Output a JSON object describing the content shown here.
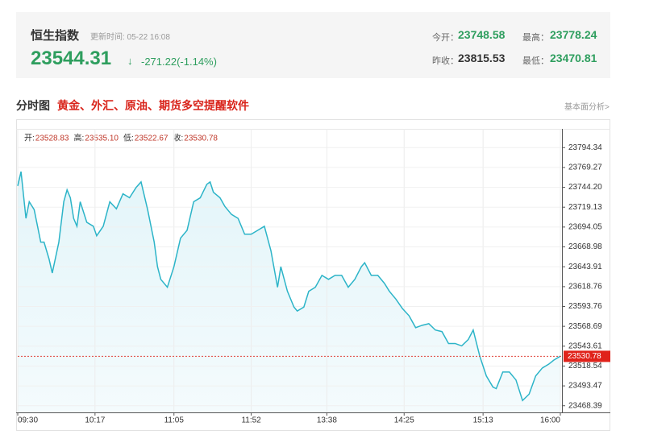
{
  "header": {
    "title": "恒生指数",
    "update_time": "更新时间: 05-22 16:08",
    "price": 23544.31,
    "arrow": "↓",
    "change": "-271.22(-1.14%)",
    "stats": [
      {
        "label": "今开：",
        "value": "23748.58"
      },
      {
        "label": "最高：",
        "value": "23778.24"
      },
      {
        "label": "昨收：",
        "value": "23815.53"
      },
      {
        "label": "最低：",
        "value": "23470.81"
      }
    ]
  },
  "section": {
    "title": "分时图",
    "promo": "黄金、外汇、原油、期货多空提醒软件",
    "link": "基本面分析>"
  },
  "chart_data": {
    "type": "line",
    "info": [
      {
        "label": "开:",
        "value": "23528.83"
      },
      {
        "label": "高:",
        "value": "23535.10"
      },
      {
        "label": "低:",
        "value": "23522.67"
      },
      {
        "label": "收:",
        "value": "23530.78"
      }
    ],
    "x": [
      0,
      2,
      5,
      7,
      10,
      14,
      16,
      19,
      21,
      25,
      28,
      30,
      32,
      34,
      36,
      38,
      42,
      46,
      48,
      52,
      56,
      60,
      64,
      68,
      72,
      75,
      79,
      83,
      85,
      87,
      91,
      95,
      99,
      103,
      107,
      111,
      115,
      117,
      119,
      123,
      126,
      130,
      134,
      138,
      142,
      146,
      150,
      154,
      158,
      160,
      164,
      168,
      170,
      174,
      177,
      181,
      185,
      189,
      193,
      197,
      201,
      205,
      209,
      211,
      215,
      219,
      223,
      226,
      230,
      234,
      238,
      242,
      246,
      250,
      254,
      258,
      262,
      266,
      270,
      274,
      277,
      281,
      285,
      289,
      291,
      295,
      299,
      303,
      307,
      311,
      315,
      319,
      323,
      326,
      330
    ],
    "series": [
      {
        "color": "#2cb4c8",
        "values": [
          23746,
          23764,
          23705,
          23726,
          23716,
          23675,
          23675,
          23654,
          23636,
          23675,
          23726,
          23741,
          23731,
          23705,
          23695,
          23726,
          23700,
          23695,
          23683,
          23695,
          23726,
          23717,
          23736,
          23731,
          23744,
          23751,
          23716,
          23675,
          23644,
          23628,
          23618,
          23644,
          23680,
          23690,
          23726,
          23731,
          23748,
          23751,
          23738,
          23731,
          23720,
          23710,
          23705,
          23685,
          23685,
          23690,
          23695,
          23664,
          23618,
          23644,
          23613,
          23593,
          23588,
          23593,
          23613,
          23618,
          23633,
          23628,
          23633,
          23633,
          23618,
          23628,
          23644,
          23649,
          23633,
          23633,
          23623,
          23613,
          23603,
          23591,
          23582,
          23567,
          23570,
          23572,
          23564,
          23562,
          23547,
          23547,
          23544,
          23552,
          23564,
          23531,
          23506,
          23492,
          23490,
          23511,
          23511,
          23501,
          23475,
          23483,
          23506,
          23516,
          23521,
          23526,
          23531
        ]
      }
    ],
    "last_price": 23530.78,
    "xlim": [
      0,
      330
    ],
    "xticks": [
      {
        "value": 0,
        "label": "09:30"
      },
      {
        "value": 47,
        "label": "10:17"
      },
      {
        "value": 95,
        "label": "11:05"
      },
      {
        "value": 142,
        "label": "11:52"
      },
      {
        "value": 188,
        "label": "13:38"
      },
      {
        "value": 235,
        "label": "14:25"
      },
      {
        "value": 283,
        "label": "15:13"
      },
      {
        "value": 330,
        "label": "16:00"
      }
    ],
    "ylim": [
      23460,
      23818
    ],
    "yticks": [
      23794.34,
      23769.27,
      {
        "value": 23744.2,
        "label": "23744.20"
      },
      23719.13,
      23694.05,
      23668.98,
      23643.91,
      23618.76,
      23593.76,
      23568.69,
      23543.61,
      23518.54,
      23493.47,
      23468.39
    ],
    "grid": true
  }
}
